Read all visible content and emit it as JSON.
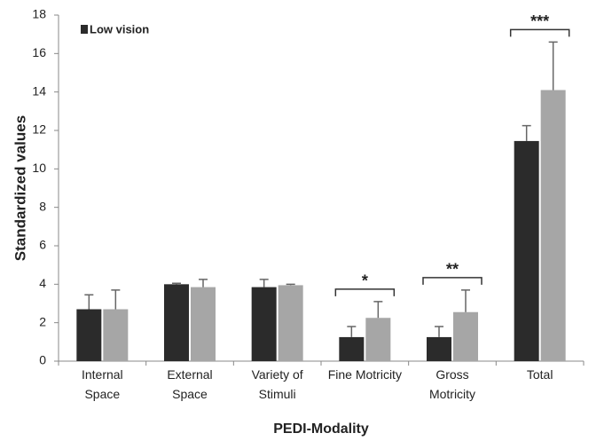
{
  "chart_data": {
    "type": "bar",
    "y_label": "Standardized values",
    "x_label": "PEDI-Modality",
    "categories": [
      "Internal Space",
      "External Space",
      "Variety of Stimuli",
      "Fine Motricity",
      "Gross Motricity",
      "Total"
    ],
    "series": [
      {
        "name": "Low vision",
        "color": "#2b2b2b",
        "values": [
          2.7,
          4.0,
          3.85,
          1.25,
          1.25,
          11.45
        ],
        "errors": [
          0.75,
          0.05,
          0.4,
          0.55,
          0.55,
          0.8
        ]
      },
      {
        "color": "#a6a6a6",
        "values": [
          2.7,
          3.85,
          3.95,
          2.25,
          2.55,
          14.1
        ],
        "errors": [
          1.0,
          0.4,
          0.05,
          0.85,
          1.15,
          2.5
        ]
      }
    ],
    "significance": [
      null,
      null,
      null,
      "*",
      "**",
      "***"
    ],
    "ylim": [
      0,
      18
    ],
    "yticks": [
      0,
      2,
      4,
      6,
      8,
      10,
      12,
      14,
      16,
      18
    ],
    "legend": "upper left",
    "grid": false
  }
}
